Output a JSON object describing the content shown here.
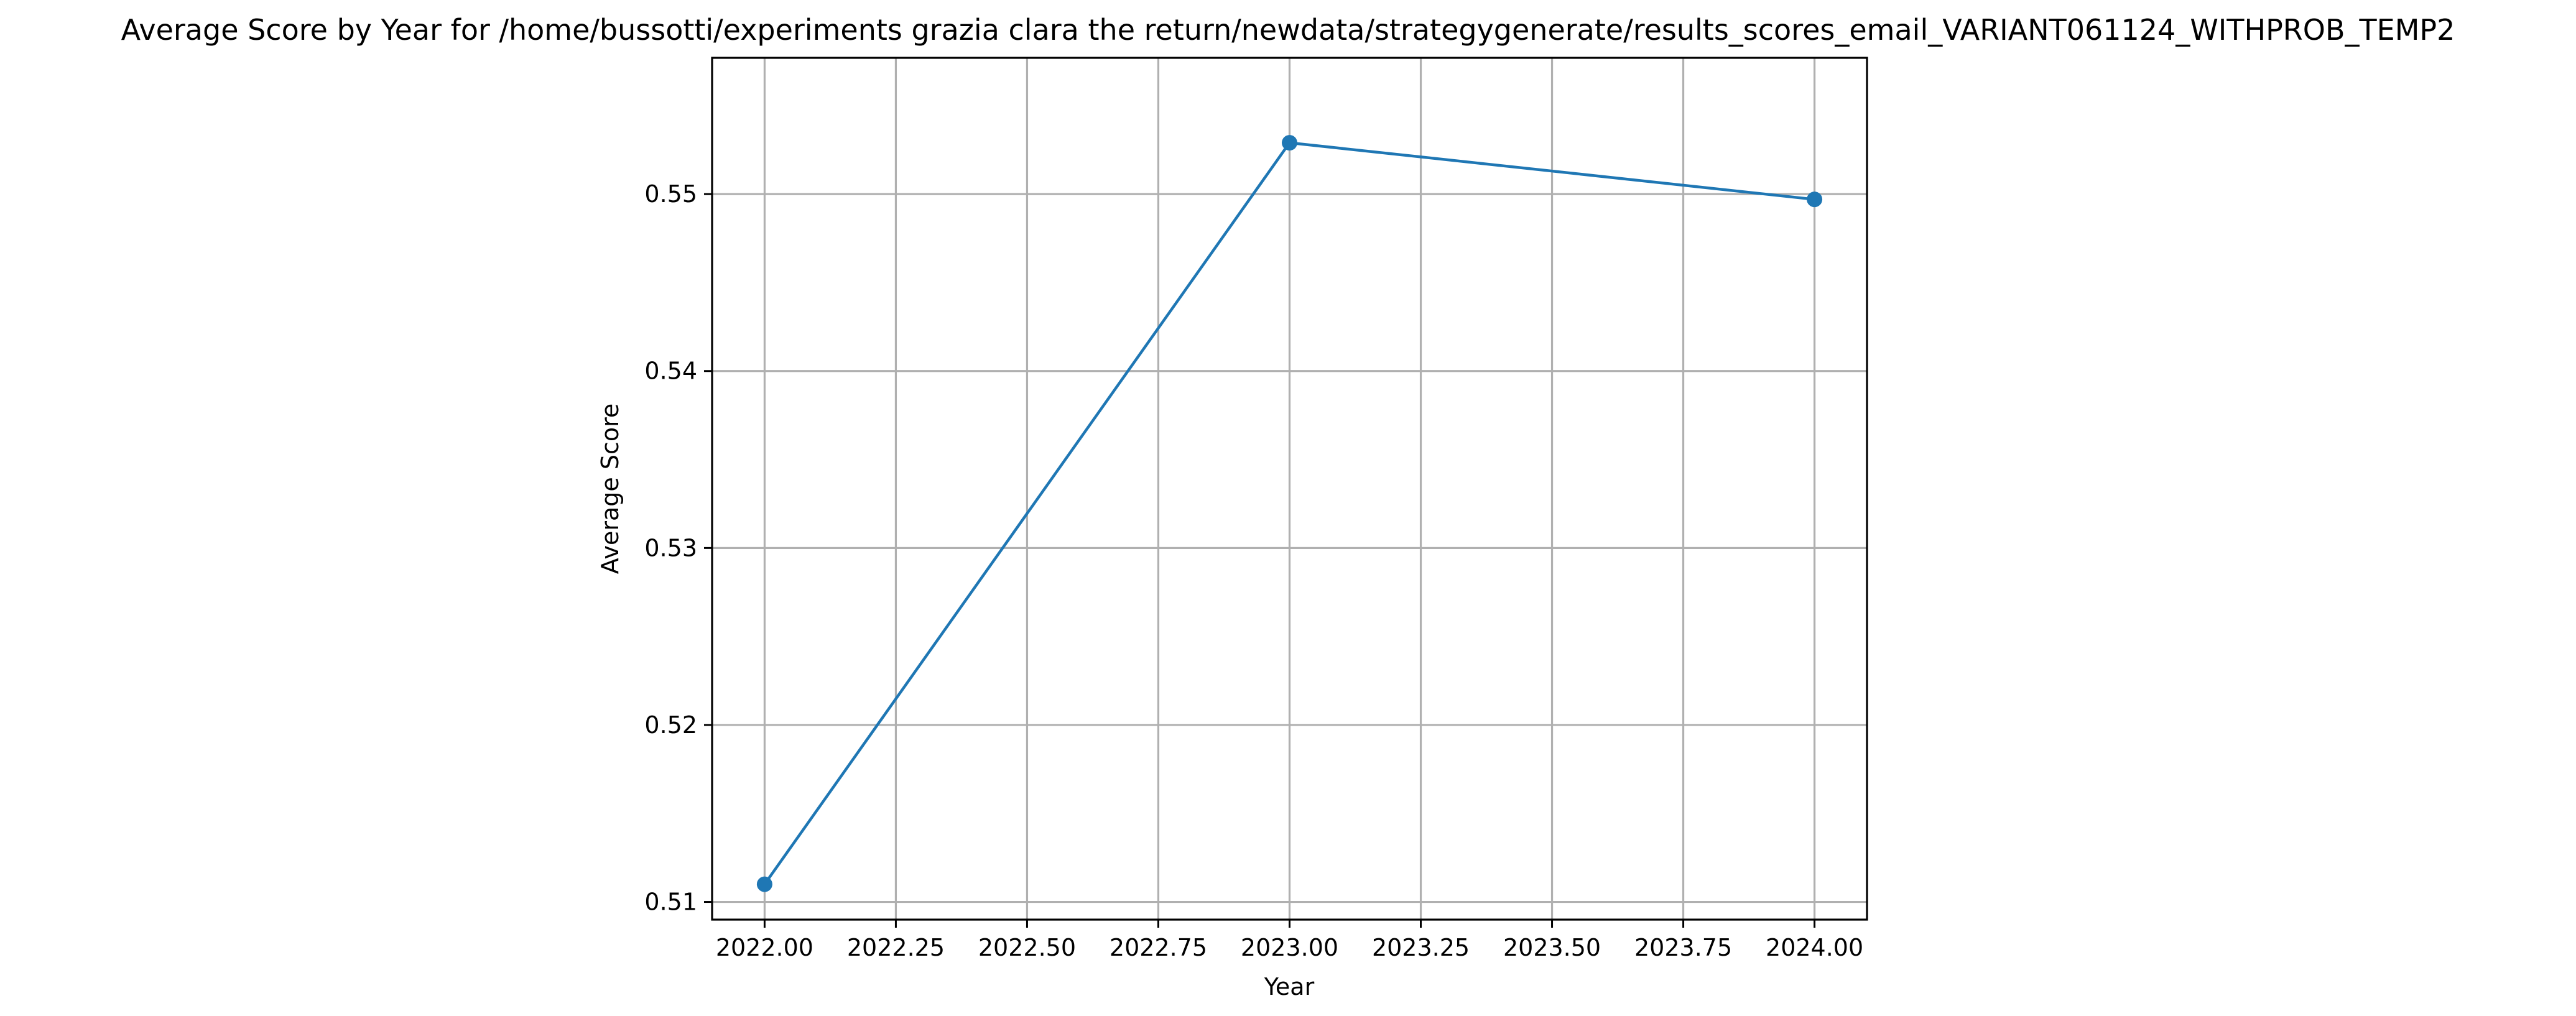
{
  "chart_data": {
    "type": "line",
    "title": "Average Score by Year for /home/bussotti/experiments grazia clara the return/newdata/strategygenerate/results_scores_email_VARIANT061124_WITHPROB_TEMP2",
    "xlabel": "Year",
    "ylabel": "Average Score",
    "xlim": [
      1999.9,
      2024.1
    ],
    "ylim": [
      0.509,
      0.5577
    ],
    "grid": true,
    "legend": "none",
    "x_ticks": [
      {
        "value": 2022.0,
        "label": "2022.00"
      },
      {
        "value": 2022.25,
        "label": "2022.25"
      },
      {
        "value": 2022.5,
        "label": "2022.50"
      },
      {
        "value": 2022.75,
        "label": "2022.75"
      },
      {
        "value": 2023.0,
        "label": "2023.00"
      },
      {
        "value": 2023.25,
        "label": "2023.25"
      },
      {
        "value": 2023.5,
        "label": "2023.50"
      },
      {
        "value": 2023.75,
        "label": "2023.75"
      },
      {
        "value": 2024.0,
        "label": "2024.00"
      }
    ],
    "y_ticks": [
      {
        "value": 0.51,
        "label": "0.51"
      },
      {
        "value": 0.52,
        "label": "0.52"
      },
      {
        "value": 0.53,
        "label": "0.53"
      },
      {
        "value": 0.54,
        "label": "0.54"
      },
      {
        "value": 0.55,
        "label": "0.55"
      }
    ],
    "series": [
      {
        "x": [
          2022,
          2023,
          2024
        ],
        "values": [
          0.511,
          0.5529,
          0.5497
        ],
        "color": "#1f77b4",
        "marker": "circle"
      }
    ]
  }
}
